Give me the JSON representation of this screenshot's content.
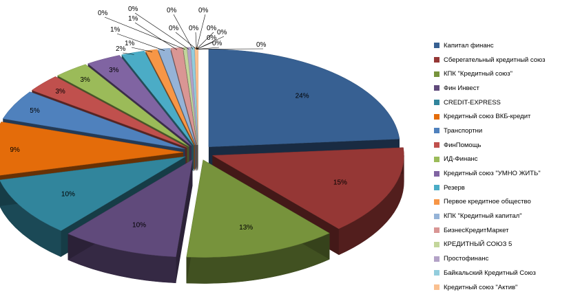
{
  "chart_data": {
    "type": "pie",
    "title": "",
    "categories": [
      "Капитал финанс",
      "Сберегательный кредитный  союз",
      "КПК \"Кредитный  союз\"",
      "Фин Инвест",
      "CREDIT-EXPRESS",
      "Кредитный союз ВКБ-кредит",
      "Транспортни",
      "ФинПомощь",
      "ИД-Финанс",
      "Кредитный союз \"УМНО ЖИТЬ\"",
      "Резерв",
      "Первое кредитное  общество",
      "КПК \"Кредитный  капитал\"",
      "БизнесКредитМаркет",
      "КРЕДИТНЫЙ  СОЮЗ 5",
      "Простофинанс",
      "Байкальский Кредитный Союз",
      "Кредитный союз \"Актив\""
    ],
    "values": [
      24,
      15,
      13,
      10,
      10,
      9,
      5,
      3,
      3,
      3,
      2,
      1,
      1,
      1,
      0,
      0,
      0,
      0
    ],
    "extra_zero_labels": [
      "0%",
      "0%",
      "0%",
      "0%",
      "0%",
      "0%",
      "0%"
    ],
    "colors": [
      "#376092",
      "#953735",
      "#77933c",
      "#604a7b",
      "#31859c",
      "#e46c0a",
      "#4f81bd",
      "#c0504d",
      "#9bbb59",
      "#8064a2",
      "#4bacc6",
      "#f79646",
      "#95b3d7",
      "#d99694",
      "#c3d69b",
      "#b3a2c7",
      "#93cddd",
      "#fac090"
    ],
    "legend_position": "right",
    "exploded": true,
    "three_d": true
  }
}
